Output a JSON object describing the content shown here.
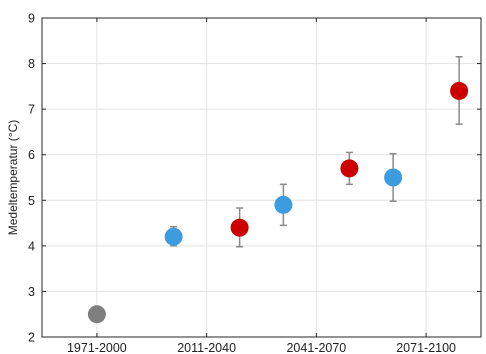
{
  "chart_data": {
    "type": "scatter",
    "title": "",
    "xlabel": "",
    "ylabel": "Medeltemperatur (°C)",
    "categories": [
      "1971-2000",
      "2011-2040",
      "2041-2070",
      "2071-2100"
    ],
    "ylim": [
      2,
      9
    ],
    "yticks": [
      "2",
      "3",
      "4",
      "5",
      "6",
      "7",
      "8",
      "9"
    ],
    "grid": true,
    "legend": "none",
    "series": [
      {
        "color": "#7f7f7f",
        "points": [
          {
            "category": "1971-2000",
            "y": 2.5,
            "err_low": null,
            "err_high": null
          }
        ]
      },
      {
        "color": "#3d9be0",
        "points": [
          {
            "category": "2011-2040",
            "y": 4.2,
            "err_low": 4.0,
            "err_high": 4.42
          },
          {
            "category": "2041-2070",
            "y": 4.9,
            "err_low": 4.45,
            "err_high": 5.35
          },
          {
            "category": "2071-2100",
            "y": 5.5,
            "err_low": 4.98,
            "err_high": 6.02
          }
        ]
      },
      {
        "color": "#cc0000",
        "points": [
          {
            "category": "2011-2040",
            "y": 4.4,
            "err_low": 3.98,
            "err_high": 4.83
          },
          {
            "category": "2041-2070",
            "y": 5.7,
            "err_low": 5.35,
            "err_high": 6.05
          },
          {
            "category": "2071-2100",
            "y": 7.4,
            "err_low": 6.67,
            "err_high": 8.15
          }
        ]
      }
    ]
  }
}
